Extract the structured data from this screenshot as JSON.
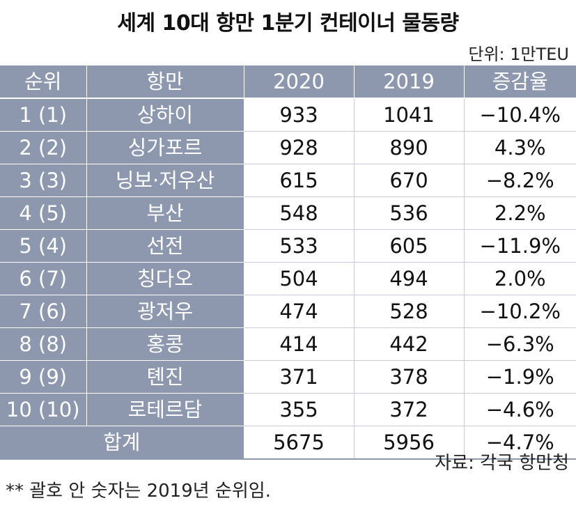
{
  "title": "세계 10대 항만 1분기 컨테이너 물동량",
  "unit": "단위: 1만TEU",
  "columns": [
    "순위",
    "항만",
    "2020",
    "2019",
    "증감율"
  ],
  "rows": [
    {
      "rank": "1 (1)",
      "port": "상하이",
      "y2020": "933",
      "y2019": "1041",
      "change": "−10.4%"
    },
    {
      "rank": "2 (2)",
      "port": "싱가포르",
      "y2020": "928",
      "y2019": "890",
      "change": "4.3%"
    },
    {
      "rank": "3 (3)",
      "port": "닝보·저우산",
      "y2020": "615",
      "y2019": "670",
      "change": "−8.2%"
    },
    {
      "rank": "4 (5)",
      "port": "부산",
      "y2020": "548",
      "y2019": "536",
      "change": "2.2%"
    },
    {
      "rank": "5 (4)",
      "port": "선전",
      "y2020": "533",
      "y2019": "605",
      "change": "−11.9%"
    },
    {
      "rank": "6 (7)",
      "port": "칭다오",
      "y2020": "504",
      "y2019": "494",
      "change": "2.0%"
    },
    {
      "rank": "7 (6)",
      "port": "광저우",
      "y2020": "474",
      "y2019": "528",
      "change": "−10.2%"
    },
    {
      "rank": "8 (8)",
      "port": "홍콩",
      "y2020": "414",
      "y2019": "442",
      "change": "−6.3%"
    },
    {
      "rank": "9 (9)",
      "port": "톈진",
      "y2020": "371",
      "y2019": "378",
      "change": "−1.9%"
    },
    {
      "rank": "10 (10)",
      "port": "로테르담",
      "y2020": "355",
      "y2019": "372",
      "change": "−4.6%"
    }
  ],
  "total": {
    "label": "합계",
    "y2020": "5675",
    "y2019": "5956",
    "change": "−4.7%"
  },
  "source": "자료: 각국 항만청",
  "footnote": "** 괄호 안 숫자는 2019년 순위임.",
  "colors": {
    "header_bg": "#8d98ae",
    "header_text": "#ffffff"
  }
}
